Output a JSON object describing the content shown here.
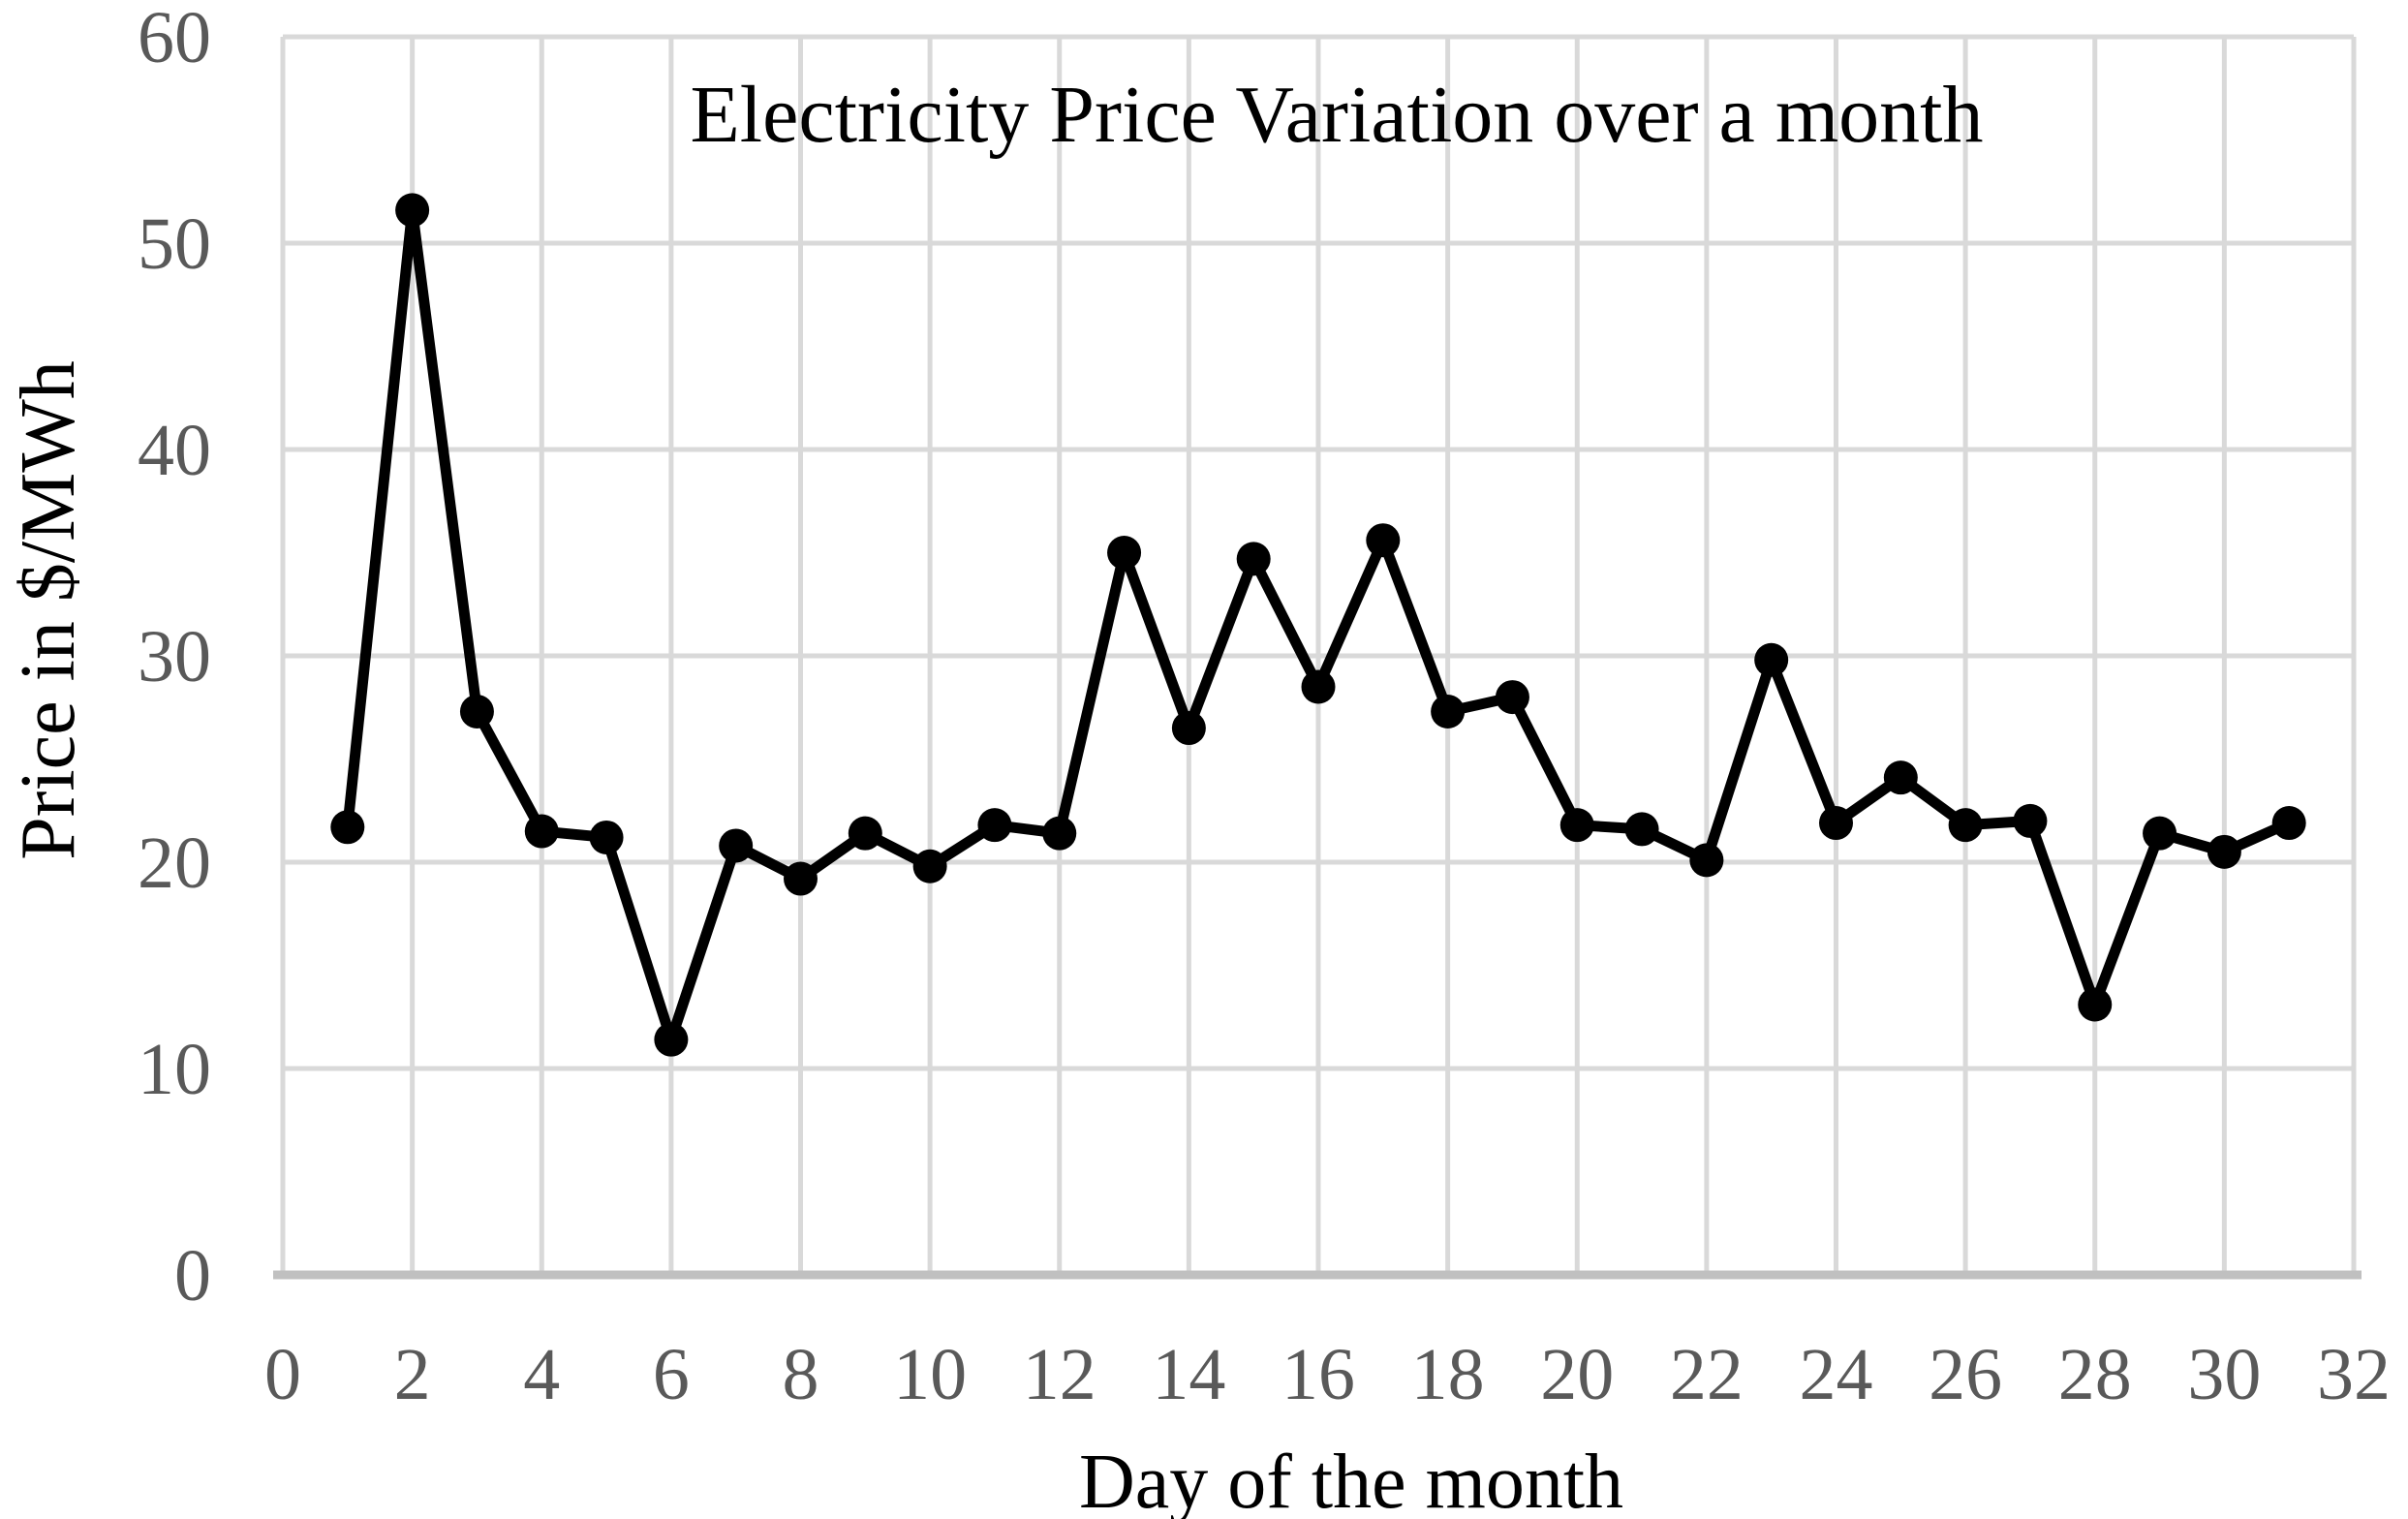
{
  "chart_data": {
    "type": "line",
    "title": "Electricity Price Variation over a month",
    "xlabel": "Day of the month",
    "ylabel": "Price in $/MWh",
    "x": [
      1,
      2,
      3,
      4,
      5,
      6,
      7,
      8,
      9,
      10,
      11,
      12,
      13,
      14,
      15,
      16,
      17,
      18,
      19,
      20,
      21,
      22,
      23,
      24,
      25,
      26,
      27,
      28,
      29,
      30,
      31
    ],
    "values": [
      21.7,
      51.6,
      27.3,
      21.5,
      21.2,
      11.4,
      20.8,
      19.2,
      21.4,
      19.8,
      21.8,
      21.4,
      35.0,
      26.5,
      34.7,
      28.5,
      35.6,
      27.3,
      28.0,
      21.8,
      21.6,
      20.1,
      29.8,
      21.9,
      24.1,
      21.8,
      22.0,
      13.1,
      21.4,
      20.5,
      21.9
    ],
    "xlim": [
      0,
      32
    ],
    "ylim": [
      0,
      60
    ],
    "xticks": [
      0,
      2,
      4,
      6,
      8,
      10,
      12,
      14,
      16,
      18,
      20,
      22,
      24,
      26,
      28,
      30,
      32
    ],
    "yticks": [
      0,
      10,
      20,
      30,
      40,
      50,
      60
    ],
    "grid": true,
    "legend": "none",
    "marker": "circle",
    "colors": {
      "background": "#ffffff",
      "line": "#000000",
      "marker_fill": "#000000",
      "gridline": "#d9d9d9",
      "axis_line": "#c0c0c0",
      "tick_label": "#595959",
      "title_text": "#000000"
    }
  }
}
